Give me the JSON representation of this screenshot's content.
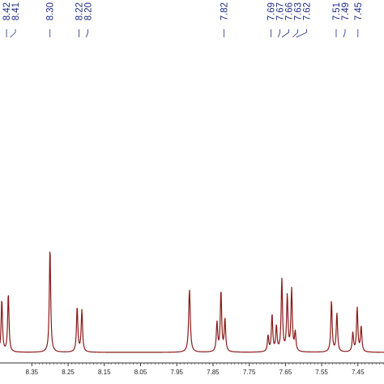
{
  "chart_data": {
    "type": "line",
    "title": "",
    "xlabel": "",
    "ylabel": "",
    "xlim": [
      8.438,
      7.378
    ],
    "ylim": [
      0,
      1.0
    ],
    "x_axis_reversed": true,
    "ticks": [
      "8.35",
      "8.25",
      "8.15",
      "8.05",
      "7.95",
      "7.85",
      "7.75",
      "7.65",
      "7.55",
      "7.45"
    ],
    "tick_values": [
      8.35,
      8.25,
      8.15,
      8.05,
      7.95,
      7.85,
      7.75,
      7.65,
      7.55,
      7.45
    ],
    "peak_labels": [
      {
        "text": "8.42",
        "x": 8.42
      },
      {
        "text": "8.41",
        "x": 8.41
      },
      {
        "text": "8.30",
        "x": 8.3
      },
      {
        "text": "8.22",
        "x": 8.22
      },
      {
        "text": "8.20",
        "x": 8.2
      },
      {
        "text": "7.82",
        "x": 7.82
      },
      {
        "text": "7.69",
        "x": 7.69
      },
      {
        "text": "7.67",
        "x": 7.67
      },
      {
        "text": "7.66",
        "x": 7.66
      },
      {
        "text": "7.63",
        "x": 7.63
      },
      {
        "text": "7.62",
        "x": 7.62
      },
      {
        "text": "7.51",
        "x": 7.51
      },
      {
        "text": "7.49",
        "x": 7.49
      },
      {
        "text": "7.45",
        "x": 7.45
      }
    ],
    "series": [
      {
        "peaks": [
          {
            "x": 8.433,
            "y": 0.5,
            "w": 0.0022
          },
          {
            "x": 8.415,
            "y": 0.56,
            "w": 0.0022
          },
          {
            "x": 8.3,
            "y": 1.0,
            "w": 0.0022
          },
          {
            "x": 8.225,
            "y": 0.43,
            "w": 0.0022
          },
          {
            "x": 8.212,
            "y": 0.4,
            "w": 0.0022
          },
          {
            "x": 7.915,
            "y": 0.6,
            "w": 0.0026
          },
          {
            "x": 7.839,
            "y": 0.28,
            "w": 0.0022
          },
          {
            "x": 7.828,
            "y": 0.58,
            "w": 0.0022
          },
          {
            "x": 7.817,
            "y": 0.31,
            "w": 0.0022
          },
          {
            "x": 7.698,
            "y": 0.15,
            "w": 0.0022
          },
          {
            "x": 7.687,
            "y": 0.35,
            "w": 0.0022
          },
          {
            "x": 7.675,
            "y": 0.24,
            "w": 0.0022
          },
          {
            "x": 7.66,
            "y": 0.69,
            "w": 0.0022
          },
          {
            "x": 7.645,
            "y": 0.53,
            "w": 0.0022
          },
          {
            "x": 7.633,
            "y": 0.59,
            "w": 0.0022
          },
          {
            "x": 7.623,
            "y": 0.18,
            "w": 0.0022
          },
          {
            "x": 7.523,
            "y": 0.49,
            "w": 0.0022
          },
          {
            "x": 7.508,
            "y": 0.37,
            "w": 0.0022
          },
          {
            "x": 7.464,
            "y": 0.18,
            "w": 0.0022
          },
          {
            "x": 7.452,
            "y": 0.42,
            "w": 0.0022
          },
          {
            "x": 7.441,
            "y": 0.24,
            "w": 0.0022
          }
        ]
      }
    ]
  },
  "colors": {
    "spectrum": "#8b1a1a",
    "peak_label": "#1f2d86",
    "axis": "#333333"
  }
}
